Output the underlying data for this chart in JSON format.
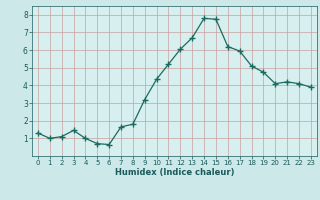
{
  "x": [
    0,
    1,
    2,
    3,
    4,
    5,
    6,
    7,
    8,
    9,
    10,
    11,
    12,
    13,
    14,
    15,
    16,
    17,
    18,
    19,
    20,
    21,
    22,
    23
  ],
  "y": [
    1.3,
    1.0,
    1.1,
    1.45,
    1.0,
    0.7,
    0.65,
    1.65,
    1.8,
    3.2,
    4.35,
    5.2,
    6.05,
    6.7,
    7.8,
    7.75,
    6.2,
    5.95,
    5.1,
    4.75,
    4.1,
    4.2,
    4.1,
    3.9
  ],
  "line_color": "#1a6b5e",
  "marker": "+",
  "marker_size": 4,
  "bg_color": "#cce8e8",
  "grid_color_h": "#c8a0a0",
  "grid_color_v": "#c8a0a0",
  "plot_bg": "#d8efef",
  "xlabel": "Humidex (Indice chaleur)",
  "xlabel_color": "#1a5a5a",
  "tick_color": "#1a5a5a",
  "ylim": [
    0.0,
    8.5
  ],
  "xlim": [
    -0.5,
    23.5
  ],
  "yticks": [
    1,
    2,
    3,
    4,
    5,
    6,
    7,
    8
  ],
  "xticks": [
    0,
    1,
    2,
    3,
    4,
    5,
    6,
    7,
    8,
    9,
    10,
    11,
    12,
    13,
    14,
    15,
    16,
    17,
    18,
    19,
    20,
    21,
    22,
    23
  ]
}
